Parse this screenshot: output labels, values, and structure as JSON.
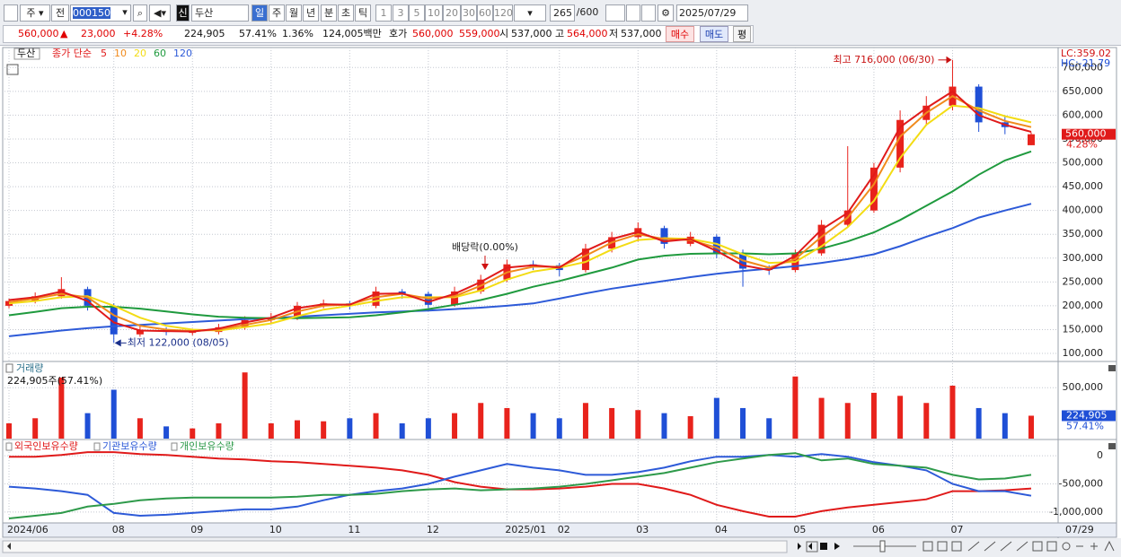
{
  "toolbar": {
    "market": "주",
    "prev": "전",
    "code": "000150",
    "new_badge": "신",
    "name": "두산",
    "periods": [
      "일",
      "주",
      "월",
      "년",
      "분",
      "초",
      "틱"
    ],
    "intervals": [
      "1",
      "3",
      "5",
      "10",
      "20",
      "30",
      "60",
      "120"
    ],
    "count": "265",
    "max_count": "/600",
    "date": "2025/07/29"
  },
  "quote": {
    "price": "560,000",
    "change_arrow": "▲",
    "change": "23,000",
    "change_pct": "+4.28%",
    "volume": "224,905",
    "volume_pct": "57.41%",
    "turnover_pct": "1.36%",
    "amount": "124,005백만",
    "bid_ask_label": "호가",
    "ask": "560,000",
    "bid": "559,000",
    "open_label": "시",
    "open": "537,000",
    "high_label": "고",
    "high": "564,000",
    "low_label": "저",
    "low": "537,000",
    "buy": "매수",
    "sell": "매도",
    "avg": "평"
  },
  "x_axis": {
    "end_label": "07/29"
  },
  "chart_data": [
    {
      "type": "candlestick",
      "name": "두산",
      "legend_prefix": "종가 단순",
      "categories": [
        "2024/06",
        null,
        null,
        null,
        "08",
        null,
        null,
        "09",
        null,
        null,
        "10",
        null,
        null,
        "11",
        null,
        null,
        "12",
        null,
        null,
        "2025/01",
        null,
        "02",
        null,
        null,
        "03",
        null,
        null,
        "04",
        null,
        null,
        "05",
        null,
        null,
        "06",
        null,
        null,
        "07",
        null,
        null,
        null
      ],
      "open": [
        200000,
        210000,
        220000,
        235000,
        200000,
        140000,
        150000,
        145000,
        145000,
        155000,
        170000,
        175000,
        200000,
        205000,
        200000,
        230000,
        225000,
        202000,
        230000,
        255000,
        287000,
        285000,
        275000,
        320000,
        344000,
        363000,
        330000,
        345000,
        310000,
        278000,
        275000,
        310000,
        370000,
        400000,
        490000,
        590000,
        620000,
        660000,
        585000,
        537000
      ],
      "high": [
        215000,
        228000,
        260000,
        240000,
        205000,
        158000,
        155000,
        152000,
        162000,
        178000,
        185000,
        208000,
        213000,
        210000,
        240000,
        235000,
        230000,
        240000,
        265000,
        297000,
        295000,
        290000,
        330000,
        355000,
        375000,
        368000,
        355000,
        350000,
        318000,
        285000,
        318000,
        380000,
        535000,
        500000,
        610000,
        640000,
        716000,
        665000,
        600000,
        564000
      ],
      "low": [
        195000,
        205000,
        215000,
        190000,
        122000,
        135000,
        138000,
        138000,
        140000,
        150000,
        165000,
        170000,
        195000,
        192000,
        195000,
        215000,
        195000,
        198000,
        225000,
        250000,
        275000,
        262000,
        270000,
        312000,
        335000,
        320000,
        325000,
        300000,
        240000,
        265000,
        270000,
        305000,
        365000,
        395000,
        480000,
        580000,
        610000,
        565000,
        560000,
        537000
      ],
      "close": [
        210000,
        220000,
        235000,
        200000,
        140000,
        150000,
        145000,
        145000,
        155000,
        170000,
        175000,
        200000,
        205000,
        200000,
        230000,
        225000,
        202000,
        230000,
        255000,
        287000,
        285000,
        275000,
        320000,
        344000,
        363000,
        330000,
        345000,
        310000,
        278000,
        275000,
        310000,
        370000,
        400000,
        490000,
        590000,
        620000,
        660000,
        585000,
        575000,
        560000
      ],
      "up_color": "#e8231c",
      "down_color": "#1f4fd6",
      "series": [
        {
          "name": "5",
          "color": "#e01a1a",
          "values": [
            212000,
            218000,
            230000,
            210000,
            165000,
            148000,
            147000,
            146000,
            152000,
            165000,
            175000,
            195000,
            203000,
            202000,
            225000,
            226000,
            208000,
            225000,
            250000,
            280000,
            285000,
            280000,
            315000,
            340000,
            355000,
            335000,
            340000,
            315000,
            285000,
            275000,
            305000,
            360000,
            395000,
            475000,
            575000,
            615000,
            650000,
            600000,
            580000,
            565000
          ]
        },
        {
          "name": "10",
          "color": "#f08a1c",
          "values": [
            208000,
            215000,
            225000,
            218000,
            180000,
            158000,
            150000,
            147000,
            150000,
            160000,
            170000,
            188000,
            200000,
            203000,
            218000,
            225000,
            215000,
            220000,
            242000,
            270000,
            282000,
            282000,
            305000,
            333000,
            350000,
            340000,
            338000,
            322000,
            295000,
            280000,
            298000,
            345000,
            385000,
            455000,
            555000,
            605000,
            640000,
            610000,
            588000,
            575000
          ]
        },
        {
          "name": "20",
          "color": "#f3dc14",
          "values": [
            205000,
            210000,
            218000,
            220000,
            200000,
            175000,
            158000,
            150000,
            148000,
            155000,
            163000,
            178000,
            192000,
            200000,
            210000,
            218000,
            218000,
            218000,
            232000,
            255000,
            272000,
            280000,
            292000,
            318000,
            338000,
            342000,
            340000,
            330000,
            308000,
            290000,
            292000,
            325000,
            365000,
            420000,
            510000,
            580000,
            620000,
            615000,
            598000,
            585000
          ]
        },
        {
          "name": "60",
          "color": "#1f9a3e",
          "values": [
            180000,
            187000,
            195000,
            198000,
            198000,
            194000,
            188000,
            182000,
            177000,
            175000,
            174000,
            174000,
            175000,
            176000,
            180000,
            186000,
            193000,
            202000,
            212000,
            225000,
            240000,
            252000,
            266000,
            280000,
            297000,
            305000,
            309000,
            310000,
            310000,
            308000,
            310000,
            320000,
            335000,
            354000,
            380000,
            410000,
            440000,
            475000,
            505000,
            524000
          ]
        },
        {
          "name": "120",
          "color": "#2d5ad8",
          "values": [
            136000,
            142000,
            148000,
            153000,
            157000,
            160000,
            163000,
            166000,
            169000,
            172000,
            174000,
            177000,
            180000,
            183000,
            186000,
            188000,
            190000,
            193000,
            196000,
            200000,
            205000,
            215000,
            226000,
            236000,
            244000,
            252000,
            260000,
            267000,
            273000,
            278000,
            283000,
            290000,
            298000,
            308000,
            325000,
            345000,
            363000,
            385000,
            400000,
            414000
          ]
        }
      ],
      "ylim": [
        85000,
        742000
      ],
      "yticks": [
        {
          "value": 100000,
          "label": "100,000"
        },
        {
          "value": 150000,
          "label": "150,000"
        },
        {
          "value": 200000,
          "label": "200,000"
        },
        {
          "value": 250000,
          "label": "250,000"
        },
        {
          "value": 300000,
          "label": "300,000"
        },
        {
          "value": 350000,
          "label": "350,000"
        },
        {
          "value": 400000,
          "label": "400,000"
        },
        {
          "value": 450000,
          "label": "450,000"
        },
        {
          "value": 500000,
          "label": "500,000"
        },
        {
          "value": 550000,
          "label": "550,000"
        },
        {
          "value": 600000,
          "label": "600,000"
        },
        {
          "value": 650000,
          "label": "650,000"
        },
        {
          "value": 700000,
          "label": "700,000"
        }
      ],
      "annotations": [
        {
          "text": "최고 716,000 (06/30)",
          "value": 716000
        },
        {
          "text": "최저 122,000 (08/05)",
          "value": 122000
        },
        {
          "text": "배당락(0.00%)"
        }
      ],
      "right_labels": {
        "lc": "LC:359.02",
        "hc": "HC:-21.79"
      },
      "last_price": {
        "value": 560000,
        "label": "560,000"
      },
      "last_change": "4.28%",
      "grid": true
    },
    {
      "type": "bar",
      "title": "거래량",
      "subtitle": "224,905주(57.41%)",
      "values": [
        150000,
        200000,
        600000,
        250000,
        480000,
        200000,
        120000,
        100000,
        150000,
        650000,
        150000,
        180000,
        170000,
        200000,
        250000,
        150000,
        200000,
        250000,
        350000,
        300000,
        250000,
        200000,
        350000,
        300000,
        280000,
        250000,
        220000,
        400000,
        300000,
        200000,
        610000,
        400000,
        350000,
        450000,
        420000,
        350000,
        520000,
        300000,
        250000,
        224905
      ],
      "ylim": [
        0,
        740000
      ],
      "yticks": [
        {
          "value": 500000,
          "label": "500,000"
        }
      ],
      "current": {
        "value": 224905,
        "label": "224,905",
        "pct": "57.41%"
      },
      "grid": true
    },
    {
      "type": "line",
      "series": [
        {
          "name": "외국인보유수량",
          "color": "#e01a1a",
          "values": [
            -16000,
            -16000,
            16000,
            65000,
            65000,
            32000,
            16000,
            -16000,
            -48000,
            -65000,
            -97000,
            -113000,
            -145000,
            -177000,
            -210000,
            -258000,
            -339000,
            -468000,
            -548000,
            -597000,
            -597000,
            -581000,
            -548000,
            -500000,
            -500000,
            -581000,
            -694000,
            -871000,
            -984000,
            -1081000,
            -1081000,
            -984000,
            -919000,
            -871000,
            -823000,
            -774000,
            -629000,
            -629000,
            -613000,
            -581000
          ]
        },
        {
          "name": "기관보유수량",
          "color": "#2d5ad8",
          "values": [
            -548000,
            -581000,
            -629000,
            -694000,
            -1016000,
            -1065000,
            -1048000,
            -1016000,
            -984000,
            -952000,
            -952000,
            -903000,
            -790000,
            -694000,
            -629000,
            -581000,
            -500000,
            -371000,
            -258000,
            -145000,
            -210000,
            -258000,
            -339000,
            -339000,
            -290000,
            -210000,
            -97000,
            -16000,
            -16000,
            16000,
            -16000,
            32000,
            -16000,
            -113000,
            -177000,
            -258000,
            -500000,
            -629000,
            -629000,
            -710000
          ]
        },
        {
          "name": "개인보유수량",
          "color": "#2e9a4a",
          "values": [
            -1113000,
            -1065000,
            -1016000,
            -903000,
            -855000,
            -790000,
            -758000,
            -742000,
            -742000,
            -742000,
            -742000,
            -726000,
            -694000,
            -694000,
            -677000,
            -629000,
            -597000,
            -581000,
            -613000,
            -597000,
            -581000,
            -548000,
            -500000,
            -435000,
            -371000,
            -306000,
            -210000,
            -113000,
            -48000,
            16000,
            48000,
            -81000,
            -48000,
            -145000,
            -177000,
            -210000,
            -339000,
            -419000,
            -403000,
            -339000
          ]
        }
      ],
      "ylim": [
        -1177000,
        258000
      ],
      "yticks": [
        0,
        {
          "value": -500000,
          "label": "-500,000"
        },
        {
          "value": -1000000,
          "label": "-1,000,000"
        }
      ],
      "grid": true
    }
  ]
}
